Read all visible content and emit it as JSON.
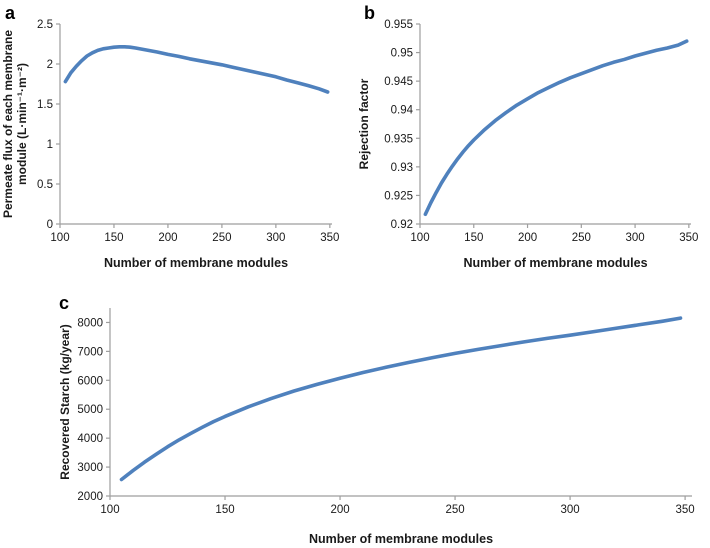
{
  "chart_data": [
    {
      "type": "line",
      "panel_label": "a",
      "xlabel": "Number of membrane modules",
      "ylabel": "Permeate flux of each membrane module (L·min⁻¹·m⁻²)",
      "line_color": "#4f81bd",
      "axis_color": "#9e9e9e",
      "tick_label_color": "#1a1a1a",
      "grid": false,
      "legend": "none",
      "xaxis": {
        "min": 100,
        "axis_max": 352,
        "ticks": [
          "100",
          "150",
          "200",
          "250",
          "300",
          "350"
        ]
      },
      "yaxis": {
        "min": 0,
        "axis_max": 2.5,
        "ticks": [
          "0",
          "0.5",
          "1",
          "1.5",
          "2",
          "2.5"
        ]
      },
      "series": [
        {
          "name": "Permeate flux",
          "points": [
            [
              105,
              1.78
            ],
            [
              110,
              1.89
            ],
            [
              115,
              1.97
            ],
            [
              120,
              2.04
            ],
            [
              125,
              2.1
            ],
            [
              130,
              2.14
            ],
            [
              135,
              2.17
            ],
            [
              140,
              2.19
            ],
            [
              145,
              2.2
            ],
            [
              150,
              2.21
            ],
            [
              155,
              2.215
            ],
            [
              160,
              2.215
            ],
            [
              165,
              2.21
            ],
            [
              170,
              2.2
            ],
            [
              180,
              2.175
            ],
            [
              190,
              2.15
            ],
            [
              200,
              2.12
            ],
            [
              210,
              2.095
            ],
            [
              220,
              2.065
            ],
            [
              230,
              2.04
            ],
            [
              240,
              2.015
            ],
            [
              250,
              1.99
            ],
            [
              260,
              1.96
            ],
            [
              270,
              1.93
            ],
            [
              280,
              1.9
            ],
            [
              290,
              1.87
            ],
            [
              300,
              1.84
            ],
            [
              310,
              1.8
            ],
            [
              320,
              1.765
            ],
            [
              330,
              1.73
            ],
            [
              340,
              1.69
            ],
            [
              348,
              1.65
            ]
          ]
        }
      ]
    },
    {
      "type": "line",
      "panel_label": "b",
      "xlabel": "Number of membrane modules",
      "ylabel": "Rejection factor",
      "line_color": "#4f81bd",
      "axis_color": "#9e9e9e",
      "tick_label_color": "#1a1a1a",
      "grid": false,
      "legend": "none",
      "xaxis": {
        "min": 100,
        "axis_max": 352,
        "ticks": [
          "100",
          "150",
          "200",
          "250",
          "300",
          "350"
        ]
      },
      "yaxis": {
        "min": 0.92,
        "axis_max": 0.955,
        "ticks": [
          "0.92",
          "0.925",
          "0.93",
          "0.935",
          "0.94",
          "0.945",
          "0.95",
          "0.955"
        ]
      },
      "series": [
        {
          "name": "Rejection factor",
          "points": [
            [
              105,
              0.9217
            ],
            [
              110,
              0.9237
            ],
            [
              115,
              0.9255
            ],
            [
              120,
              0.9272
            ],
            [
              125,
              0.9287
            ],
            [
              130,
              0.9301
            ],
            [
              135,
              0.9314
            ],
            [
              140,
              0.9326
            ],
            [
              145,
              0.9337
            ],
            [
              150,
              0.9347
            ],
            [
              160,
              0.9365
            ],
            [
              170,
              0.9381
            ],
            [
              180,
              0.9395
            ],
            [
              190,
              0.9408
            ],
            [
              200,
              0.9419
            ],
            [
              210,
              0.943
            ],
            [
              220,
              0.9439
            ],
            [
              230,
              0.9448
            ],
            [
              240,
              0.9456
            ],
            [
              250,
              0.9463
            ],
            [
              260,
              0.947
            ],
            [
              270,
              0.9477
            ],
            [
              280,
              0.9483
            ],
            [
              290,
              0.9488
            ],
            [
              300,
              0.9494
            ],
            [
              310,
              0.9499
            ],
            [
              320,
              0.9504
            ],
            [
              330,
              0.9508
            ],
            [
              340,
              0.9513
            ],
            [
              348,
              0.952
            ]
          ]
        }
      ]
    },
    {
      "type": "line",
      "panel_label": "c",
      "xlabel": "Number of membrane modules",
      "ylabel": "Recovered Starch (kg/year)",
      "line_color": "#4f81bd",
      "axis_color": "#9e9e9e",
      "tick_label_color": "#1a1a1a",
      "grid": false,
      "legend": "none",
      "xaxis": {
        "min": 100,
        "axis_max": 353,
        "ticks": [
          "100",
          "150",
          "200",
          "250",
          "300",
          "350"
        ]
      },
      "yaxis": {
        "min": 2000,
        "axis_max": 8500,
        "ticks": [
          "2000",
          "3000",
          "4000",
          "5000",
          "6000",
          "7000",
          "8000"
        ]
      },
      "series": [
        {
          "name": "Recovered starch",
          "points": [
            [
              105,
              2570
            ],
            [
              110,
              2880
            ],
            [
              115,
              3170
            ],
            [
              120,
              3440
            ],
            [
              125,
              3700
            ],
            [
              130,
              3940
            ],
            [
              135,
              4160
            ],
            [
              140,
              4370
            ],
            [
              145,
              4570
            ],
            [
              150,
              4750
            ],
            [
              160,
              5080
            ],
            [
              170,
              5370
            ],
            [
              180,
              5630
            ],
            [
              190,
              5860
            ],
            [
              200,
              6070
            ],
            [
              210,
              6270
            ],
            [
              220,
              6450
            ],
            [
              230,
              6620
            ],
            [
              240,
              6780
            ],
            [
              250,
              6930
            ],
            [
              260,
              7070
            ],
            [
              270,
              7200
            ],
            [
              280,
              7330
            ],
            [
              290,
              7450
            ],
            [
              300,
              7560
            ],
            [
              310,
              7680
            ],
            [
              320,
              7800
            ],
            [
              330,
              7920
            ],
            [
              340,
              8040
            ],
            [
              348,
              8150
            ]
          ]
        }
      ]
    }
  ]
}
